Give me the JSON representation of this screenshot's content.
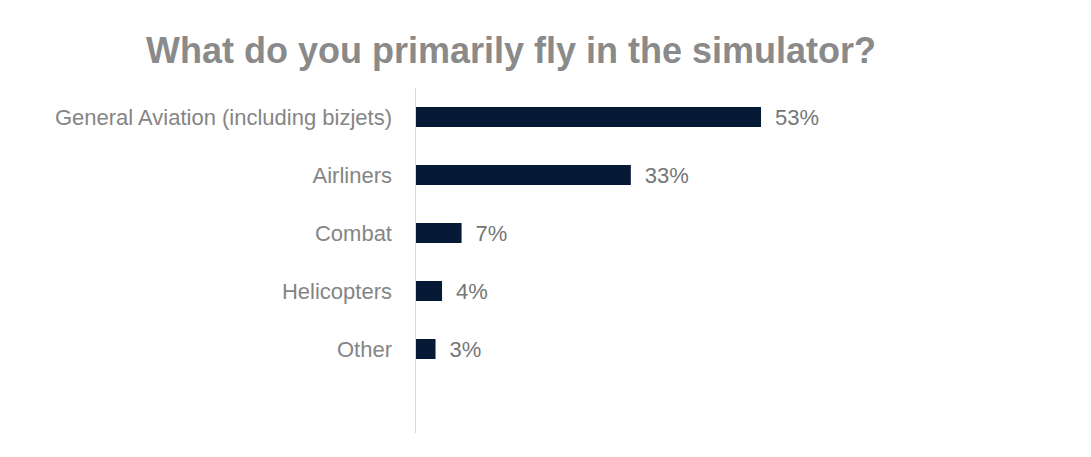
{
  "chart_data": {
    "type": "bar",
    "orientation": "horizontal",
    "title": "What do you primarily fly in the simulator?",
    "categories": [
      "General Aviation (including bizjets)",
      "Airliners",
      "Combat",
      "Helicopters",
      "Other"
    ],
    "values": [
      53,
      33,
      7,
      4,
      3
    ],
    "value_labels": [
      "53%",
      "33%",
      "7%",
      "4%",
      "3%"
    ],
    "color": "#061a36",
    "xlim": [
      0,
      100
    ],
    "data_labels": true,
    "tick_labels": "y",
    "grid": false
  }
}
